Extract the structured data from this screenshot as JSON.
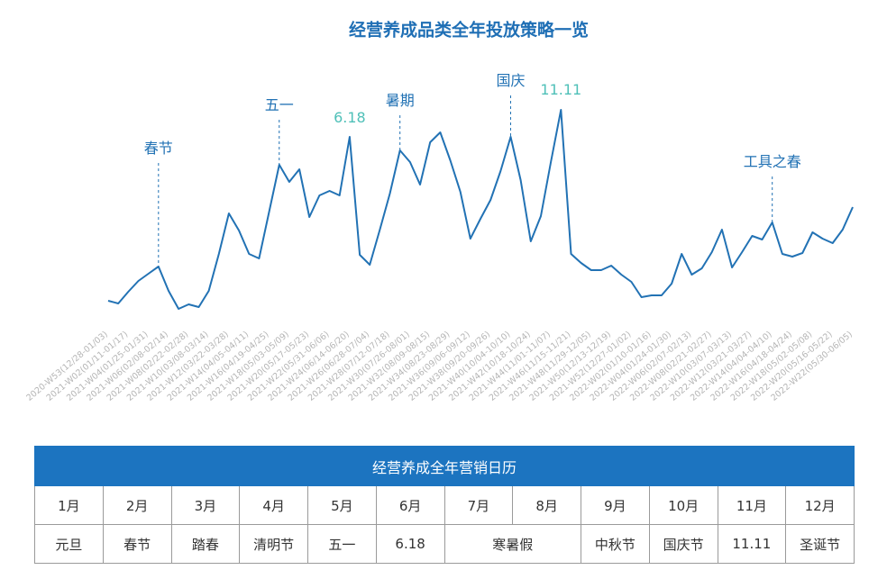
{
  "chart_data": {
    "type": "line",
    "title": "经营养成品类全年投放策略一览",
    "color": "#2272b4",
    "ylim": [
      0,
      100
    ],
    "categories": [
      "2020-W53(12/28-01/03)",
      null,
      "2021-W02(01/11-01/17)",
      null,
      "2021-W04(01/25-01/31)",
      null,
      "2021-W06(02/08-02/14)",
      null,
      "2021-W08(02/22-02/28)",
      null,
      "2021-W10(03/08-03/14)",
      null,
      "2021-W12(03/22-03/28)",
      null,
      "2021-W14(04/05-04/11)",
      null,
      "2021-W16(04/19-04/25)",
      null,
      "2021-W18(05/03-05/09)",
      null,
      "2021-W20(05/17-05/23)",
      null,
      "2021-W22(05/31-06/06)",
      null,
      "2021-W24(06/14-06/20)",
      null,
      "2021-W26(06/28-07/04)",
      null,
      "2021-W28(07/12-07/18)",
      null,
      "2021-W30(07/26-08/01)",
      null,
      "2021-W32(08/09-08/15)",
      null,
      "2021-W34(08/23-08/29)",
      null,
      "2021-W36(09/06-09/12)",
      null,
      "2021-W38(09/20-09/26)",
      null,
      "2021-W40(10/04-10/10)",
      null,
      "2021-W42(10/18-10/24)",
      null,
      "2021-W44(11/01-11/07)",
      null,
      "2021-W46(11/15-11/21)",
      null,
      "2021-W48(11/29-12/05)",
      null,
      "2021-W50(12/13-12/19)",
      null,
      "2021-W52(12/27-01/02)",
      null,
      "2022-W02(01/10-01/16)",
      null,
      "2022-W04(01/24-01/30)",
      null,
      "2022-W06(02/07-02/13)",
      null,
      "2022-W08(02/21-02/27)",
      null,
      "2022-W10(03/07-03/13)",
      null,
      "2022-W12(03/21-03/27)",
      null,
      "2022-W14(04/04-04/10)",
      null,
      "2022-W16(04/18-04/24)",
      null,
      "2022-W18(05/02-05/08)",
      null,
      "2022-W20(05/16-05/22)",
      null,
      "2022-W22(05/30-06/05)"
    ],
    "values": [
      10.4,
      9.2,
      14.4,
      19.2,
      22.4,
      25.6,
      14.8,
      6.8,
      8.8,
      7.6,
      14.8,
      31.2,
      49.2,
      41.6,
      31.2,
      29.2,
      50,
      70.8,
      63.2,
      68.8,
      47.6,
      57.2,
      59.2,
      57.2,
      83.2,
      30.8,
      26.4,
      42,
      58,
      77.2,
      72,
      62,
      80.8,
      85.2,
      72.8,
      58.8,
      38,
      46.8,
      55.2,
      68,
      83.2,
      64,
      36.8,
      48,
      72,
      95.2,
      31.2,
      27.2,
      24,
      24,
      26,
      22,
      18.8,
      12,
      12.8,
      12.8,
      18,
      31.2,
      22,
      24.8,
      32,
      42,
      25.2,
      32,
      39.2,
      37.6,
      45.2,
      31.2,
      30,
      31.6,
      40.8,
      38,
      36,
      42,
      52
    ],
    "annotations": [
      {
        "index": 5,
        "label": "春节",
        "color": "#2272b4",
        "dashed": true
      },
      {
        "index": 17,
        "label": "五一",
        "color": "#2272b4",
        "dashed": true
      },
      {
        "index": 24,
        "label": "6.18",
        "color": "#4fc0b8",
        "dashed": false
      },
      {
        "index": 29,
        "label": "暑期",
        "color": "#2272b4",
        "dashed": true
      },
      {
        "index": 40,
        "label": "国庆",
        "color": "#2272b4",
        "dashed": true
      },
      {
        "index": 45,
        "label": "11.11",
        "color": "#4fc0b8",
        "dashed": false
      },
      {
        "index": 66,
        "label": "工具之春",
        "color": "#2272b4",
        "dashed": true
      }
    ]
  },
  "table": {
    "title": "经营养成全年营销日历",
    "months": [
      "1月",
      "2月",
      "3月",
      "4月",
      "5月",
      "6月",
      "7月",
      "8月",
      "9月",
      "10月",
      "11月",
      "12月"
    ],
    "events": [
      "元旦",
      "春节",
      "踏春",
      "清明节",
      "五一",
      "6.18",
      "寒暑假",
      null,
      "中秋节",
      "国庆节",
      "11.11",
      "圣诞节"
    ]
  }
}
